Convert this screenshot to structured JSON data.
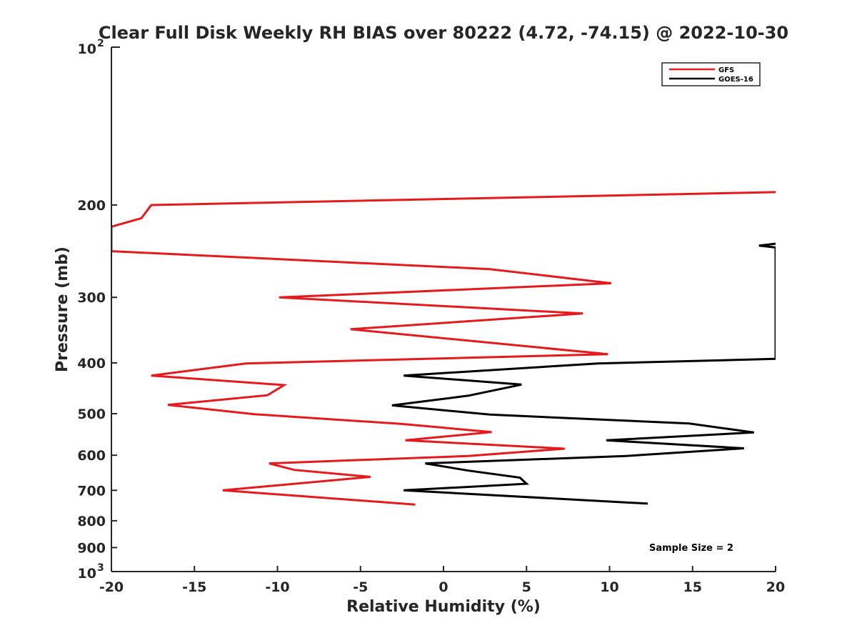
{
  "chart_data": {
    "type": "line",
    "title": "Clear Full Disk Weekly RH BIAS over 80222 (4.72, -74.15) @ 2022-10-30",
    "xlabel": "Relative Humidity (%)",
    "ylabel": "Pressure (mb)",
    "xlim": [
      -20,
      20
    ],
    "ylim": [
      100,
      1000
    ],
    "y_scale": "log",
    "y_reversed": true,
    "grid": false,
    "legend_position": "top-right",
    "x_ticks": [
      -20,
      -15,
      -10,
      -5,
      0,
      5,
      10,
      15,
      20
    ],
    "x_tick_labels": [
      "-20",
      "-15",
      "-10",
      "-5",
      "0",
      "5",
      "10",
      "15",
      "20"
    ],
    "y_ticks": [
      200,
      300,
      400,
      500,
      600,
      700,
      800,
      900
    ],
    "y_tick_labels": [
      "200",
      "300",
      "400",
      "500",
      "600",
      "700",
      "800",
      "900"
    ],
    "y_major_ticks": [
      {
        "value": 100,
        "base": "10",
        "exp": "2"
      },
      {
        "value": 1000,
        "base": "10",
        "exp": "3"
      }
    ],
    "annotation": "Sample Size = 2",
    "series": [
      {
        "name": "GFS",
        "color": "#e41a1c",
        "points": [
          [
            20.0,
            189
          ],
          [
            -17.6,
            200
          ],
          [
            -18.2,
            212
          ],
          [
            -20.0,
            220
          ],
          [
            -20.0,
            245
          ],
          [
            2.8,
            265
          ],
          [
            10.1,
            282
          ],
          [
            -9.9,
            300
          ],
          [
            8.4,
            322
          ],
          [
            -5.6,
            345
          ],
          [
            9.9,
            385
          ],
          [
            -11.9,
            401
          ],
          [
            -17.6,
            423
          ],
          [
            -9.6,
            441
          ],
          [
            -10.6,
            461
          ],
          [
            -16.6,
            481
          ],
          [
            -11.4,
            501
          ],
          [
            -2.5,
            523
          ],
          [
            2.9,
            542
          ],
          [
            -2.3,
            562
          ],
          [
            7.3,
            583
          ],
          [
            1.5,
            602
          ],
          [
            -10.5,
            622
          ],
          [
            -9.0,
            640
          ],
          [
            -4.4,
            660
          ],
          [
            -13.3,
            700
          ],
          [
            -1.7,
            745
          ]
        ]
      },
      {
        "name": "GOES-16",
        "color": "#000000",
        "points": [
          [
            20.0,
            237
          ],
          [
            19.0,
            239
          ],
          [
            20.0,
            241
          ],
          [
            20.0,
            393
          ],
          [
            9.3,
            401
          ],
          [
            -2.4,
            423
          ],
          [
            4.7,
            440
          ],
          [
            1.5,
            462
          ],
          [
            -3.1,
            482
          ],
          [
            2.8,
            502
          ],
          [
            14.8,
            522
          ],
          [
            18.7,
            543
          ],
          [
            9.8,
            562
          ],
          [
            18.1,
            582
          ],
          [
            11.0,
            602
          ],
          [
            -1.1,
            622
          ],
          [
            1.5,
            642
          ],
          [
            4.6,
            662
          ],
          [
            5.0,
            680
          ],
          [
            -2.4,
            700
          ],
          [
            12.3,
            742
          ]
        ]
      }
    ]
  }
}
